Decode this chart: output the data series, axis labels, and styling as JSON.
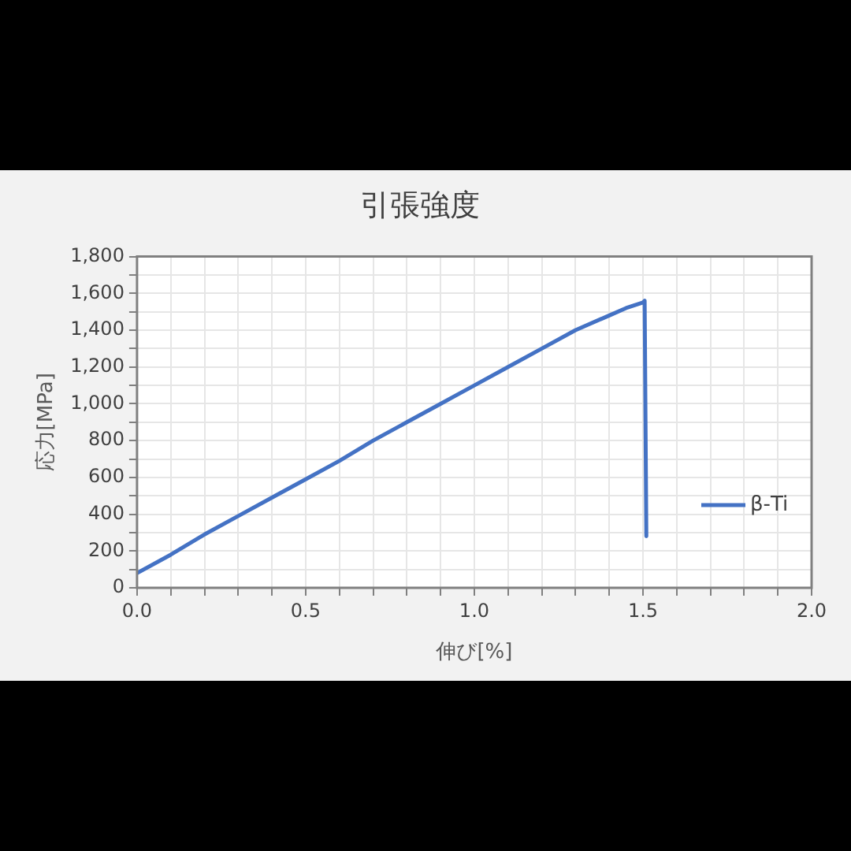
{
  "chart_data": {
    "type": "line",
    "title": "引張強度",
    "xlabel": "伸び[%]",
    "ylabel": "応力[MPa]",
    "series": [
      {
        "name": "β-Ti",
        "color": "#4472c4",
        "x": [
          0,
          0.1,
          0.2,
          0.3,
          0.4,
          0.5,
          0.6,
          0.7,
          0.8,
          0.9,
          1.0,
          1.1,
          1.2,
          1.3,
          1.4,
          1.45,
          1.5,
          1.505,
          1.51
        ],
        "values": [
          80,
          180,
          290,
          390,
          490,
          590,
          690,
          800,
          900,
          1000,
          1100,
          1200,
          1300,
          1400,
          1480,
          1520,
          1550,
          1560,
          280
        ]
      }
    ],
    "xlim": [
      0,
      2
    ],
    "xticks": [
      {
        "value": 0,
        "label": "0.0"
      },
      {
        "value": 0.1,
        "label": null
      },
      {
        "value": 0.2,
        "label": null
      },
      {
        "value": 0.3,
        "label": null
      },
      {
        "value": 0.4,
        "label": null
      },
      {
        "value": 0.5,
        "label": "0.5"
      },
      {
        "value": 0.6,
        "label": null
      },
      {
        "value": 0.7,
        "label": null
      },
      {
        "value": 0.8,
        "label": null
      },
      {
        "value": 0.9,
        "label": null
      },
      {
        "value": 1,
        "label": "1.0"
      },
      {
        "value": 1.1,
        "label": null
      },
      {
        "value": 1.2,
        "label": null
      },
      {
        "value": 1.3,
        "label": null
      },
      {
        "value": 1.4,
        "label": null
      },
      {
        "value": 1.5,
        "label": "1.5"
      },
      {
        "value": 1.6,
        "label": null
      },
      {
        "value": 1.7,
        "label": null
      },
      {
        "value": 1.8,
        "label": null
      },
      {
        "value": 1.9,
        "label": null
      },
      {
        "value": 2,
        "label": "2.0"
      }
    ],
    "ylim": [
      0,
      1800
    ],
    "yticks": [
      0,
      {
        "value": 100,
        "label": null
      },
      200,
      {
        "value": 300,
        "label": null
      },
      400,
      {
        "value": 500,
        "label": null
      },
      600,
      {
        "value": 700,
        "label": null
      },
      800,
      {
        "value": 900,
        "label": null
      },
      {
        "value": 1000,
        "label": "1,000"
      },
      {
        "value": 1100,
        "label": null
      },
      {
        "value": 1200,
        "label": "1,200"
      },
      {
        "value": 1300,
        "label": null
      },
      {
        "value": 1400,
        "label": "1,400"
      },
      {
        "value": 1500,
        "label": null
      },
      {
        "value": 1600,
        "label": "1,600"
      },
      {
        "value": 1700,
        "label": null
      },
      {
        "value": 1800,
        "label": "1,800"
      }
    ],
    "grid": true,
    "legend": "right",
    "marker": "none",
    "line_style": "solid"
  }
}
